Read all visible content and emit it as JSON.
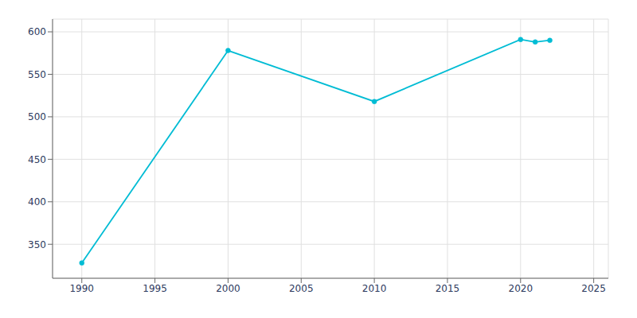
{
  "chart_data": {
    "type": "line",
    "x": [
      1990,
      2000,
      2010,
      2020,
      2021,
      2022
    ],
    "values": [
      328,
      578,
      518,
      591,
      588,
      590
    ],
    "color": "#00BCD4",
    "marker": "circle",
    "xlim": [
      1988,
      2026
    ],
    "ylim": [
      310,
      615
    ],
    "xticks": [
      1990,
      1995,
      2000,
      2005,
      2010,
      2015,
      2020,
      2025
    ],
    "yticks": [
      350,
      400,
      450,
      500,
      550,
      600
    ],
    "grid": true
  }
}
